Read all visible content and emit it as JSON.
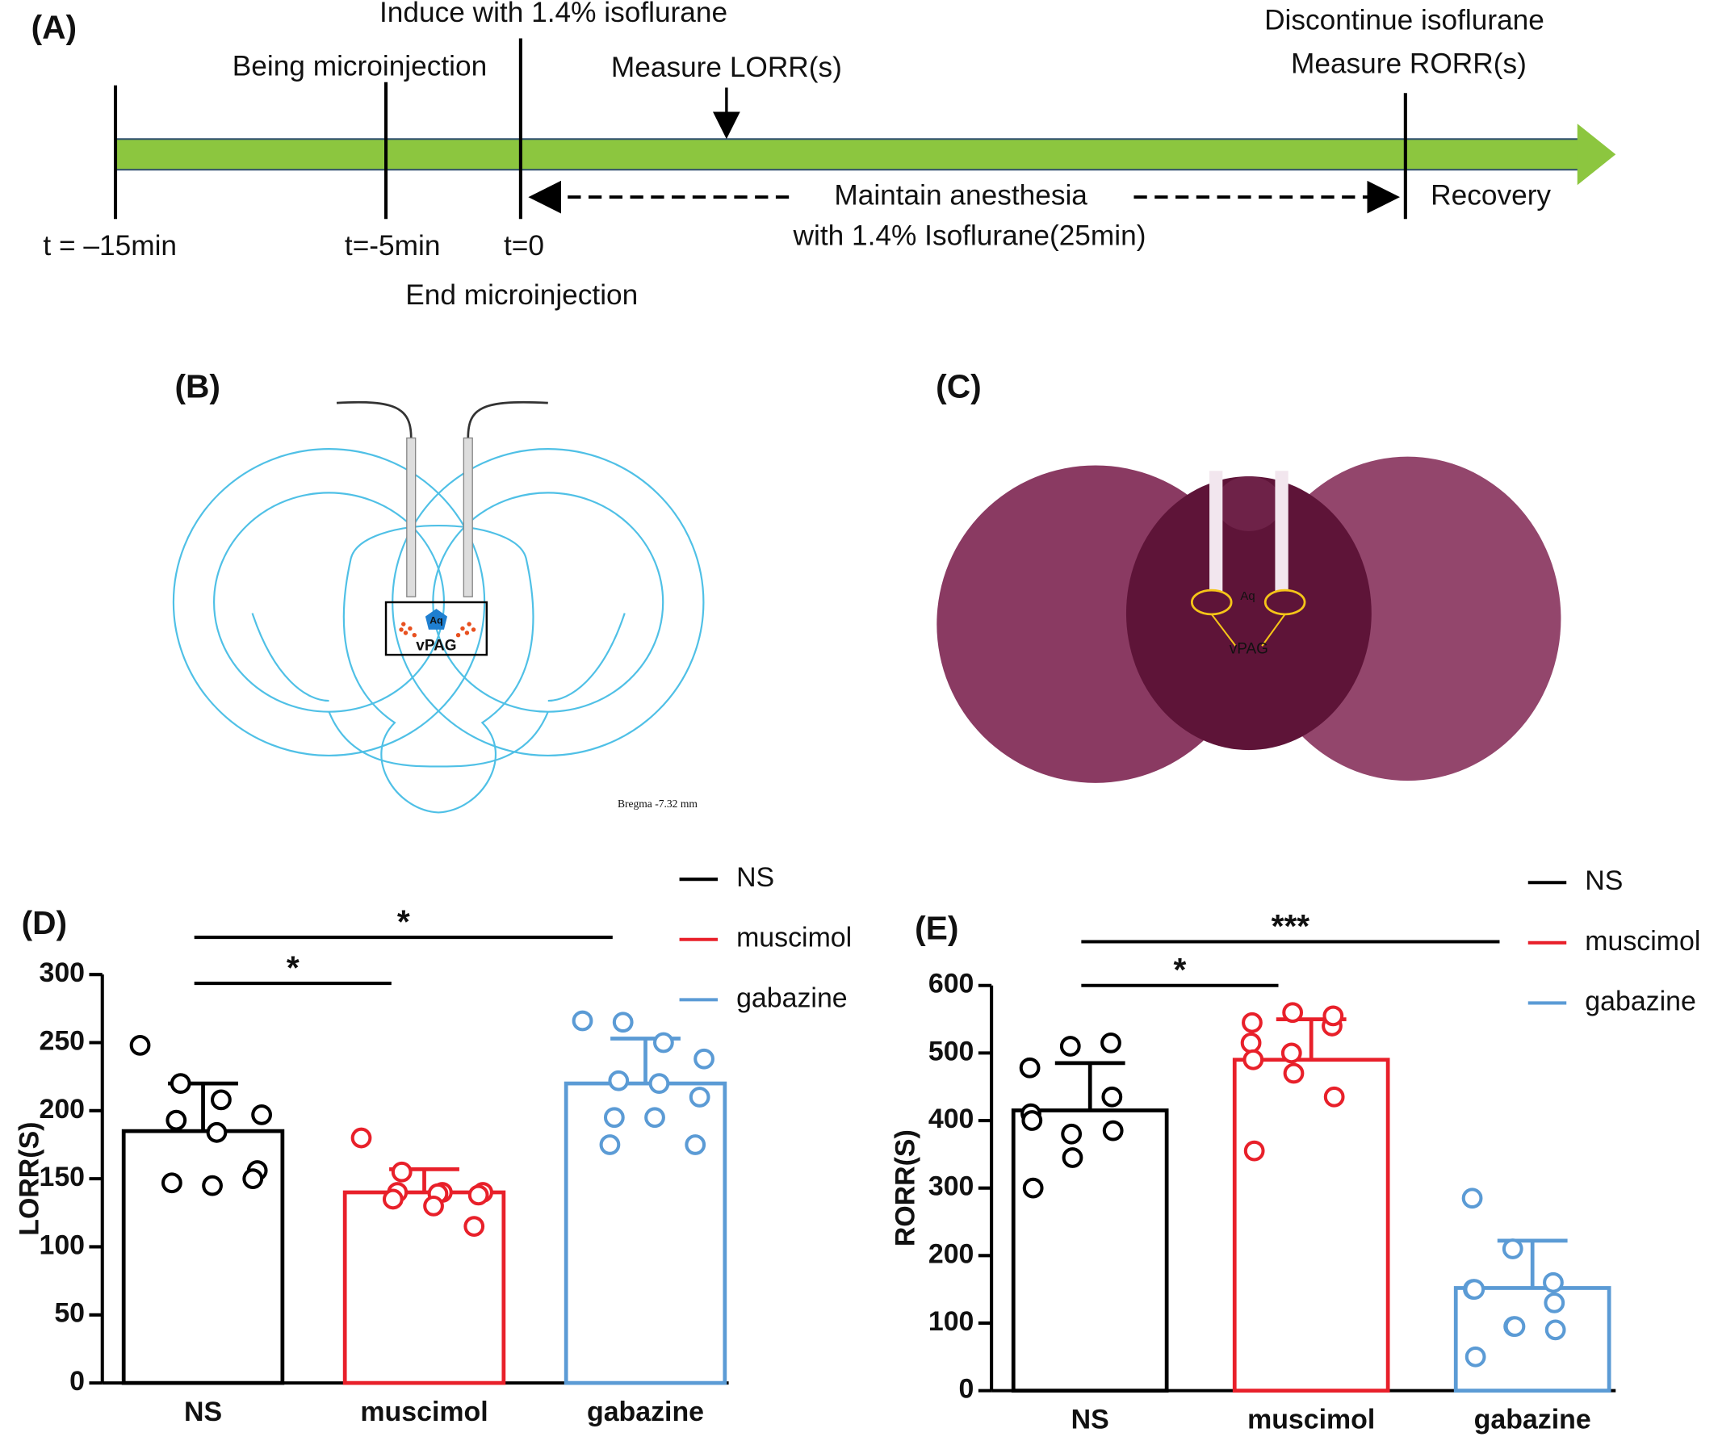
{
  "panel_a": {
    "label": "(A)",
    "induce": "Induce with 1.4% isoflurane",
    "being": "Being microinjection",
    "measure_lorr": "Measure LORR(s)",
    "discontinue": "Discontinue isoflurane",
    "measure_rorr": "Measure RORR(s)",
    "maintain": "Maintain anesthesia",
    "maintain_2": "with 1.4% Isoflurane(25min)",
    "recovery": "Recovery",
    "t1": "t = –15min",
    "t2": "t=-5min",
    "t3": "t=0",
    "end": "End microinjection"
  },
  "panel_b": {
    "label": "(B)",
    "aq": "Aq",
    "region": "vPAG",
    "bregma": "Bregma -7.32 mm"
  },
  "panel_c": {
    "label": "(C)",
    "aq": "Aq",
    "region": "vPAG"
  },
  "chart_data": [
    {
      "type": "bar",
      "panel": "(D)",
      "ylabel": "LORR(S)",
      "categories": [
        "NS",
        "muscimol",
        "gabazine"
      ],
      "values": [
        185,
        140,
        220
      ],
      "errors": [
        35,
        17,
        33
      ],
      "colors": [
        "#000000",
        "#e8202a",
        "#5b9bd5"
      ],
      "points": [
        [
          248,
          220,
          208,
          197,
          193,
          184,
          156,
          147,
          145,
          150
        ],
        [
          180,
          155,
          140,
          140,
          140,
          139,
          138,
          135,
          130,
          115
        ],
        [
          266,
          265,
          250,
          238,
          222,
          220,
          210,
          195,
          195,
          175,
          175
        ]
      ],
      "ylim": [
        0,
        300
      ],
      "yticks": [
        0,
        50,
        100,
        150,
        200,
        250,
        300
      ],
      "legend": true,
      "annotations": [
        {
          "text": "*",
          "from": 0,
          "to": 1
        },
        {
          "text": "*",
          "from": 0,
          "to": 2
        }
      ]
    },
    {
      "type": "bar",
      "panel": "(E)",
      "ylabel": "RORR(S)",
      "categories": [
        "NS",
        "muscimol",
        "gabazine"
      ],
      "values": [
        415,
        490,
        152
      ],
      "errors": [
        70,
        60,
        70
      ],
      "colors": [
        "#000000",
        "#e8202a",
        "#5b9bd5"
      ],
      "points": [
        [
          478,
          510,
          515,
          410,
          380,
          435,
          400,
          345,
          385,
          300
        ],
        [
          515,
          500,
          540,
          545,
          560,
          555,
          490,
          470,
          435,
          355
        ],
        [
          285,
          210,
          160,
          150,
          95,
          130,
          150,
          95,
          90,
          50
        ]
      ],
      "ylim": [
        0,
        600
      ],
      "yticks": [
        0,
        100,
        200,
        300,
        400,
        500,
        600
      ],
      "legend": true,
      "annotations": [
        {
          "text": "*",
          "from": 0,
          "to": 1
        },
        {
          "text": "***",
          "from": 0,
          "to": 2
        }
      ]
    }
  ]
}
